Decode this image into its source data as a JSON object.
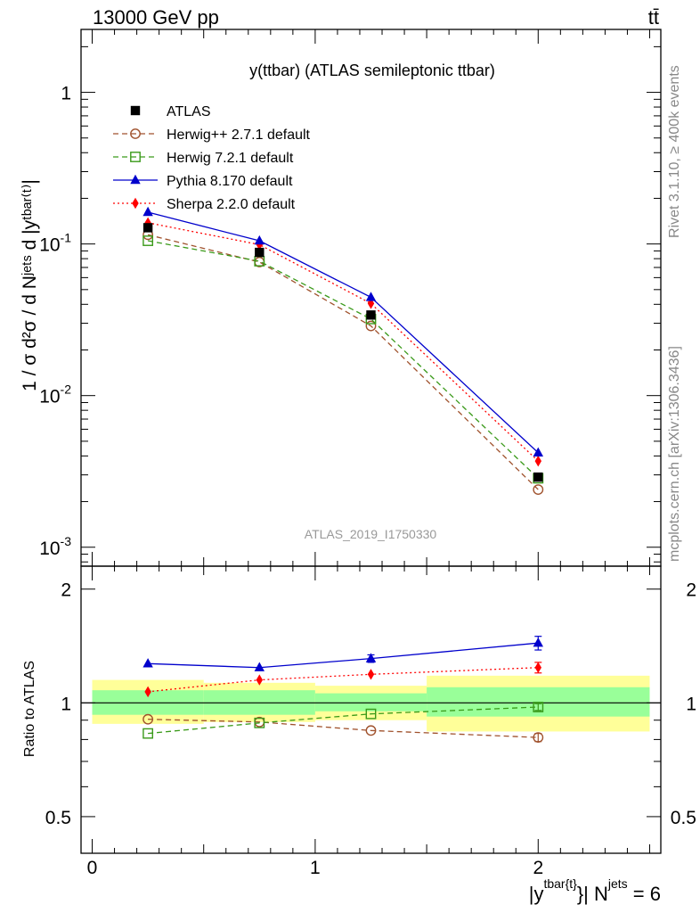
{
  "header": {
    "energy_label": "13000 GeV pp",
    "process_label": "tt̄"
  },
  "side_labels": {
    "rivet": "Rivet 3.1.10, ≥ 400k events",
    "mcplots": "mcplots.cern.ch [arXiv:1306.3436]"
  },
  "chart_data": {
    "type": "line",
    "title": "y(ttbar) (ATLAS semileptonic ttbar)",
    "analysis_label": "ATLAS_2019_I1750330",
    "ylabel_main": "1 / σ d²σ / d Nʲᵉᵗˢ d |yᵗᵇᵃʳ⁽ᵗ⁾|",
    "ylabel_ratio": "Ratio to ATLAS",
    "xlabel": "|y^{tbar{t}}| N^{jets} = 6",
    "xlabel_parts": {
      "base": "|y",
      "sup1": "tbar{t}",
      "mid": "}| N",
      "sup2": "jets",
      "tail": " = 6"
    },
    "xlim": [
      -0.05,
      2.55
    ],
    "ylim_main": [
      0.00075,
      2.6
    ],
    "yscale_main": "log",
    "ylim_ratio": [
      0.4,
      2.3
    ],
    "yscale_ratio": "log",
    "x_ticks": [
      "0",
      "1",
      "2"
    ],
    "main_y_tick_labels": [
      {
        "base": "10",
        "exp": "-3",
        "value": 0.001
      },
      {
        "base": "10",
        "exp": "-2",
        "value": 0.01
      },
      {
        "base": "10",
        "exp": "-1",
        "value": 0.1
      },
      {
        "base": "1",
        "exp": "",
        "value": 1
      }
    ],
    "ratio_y_tick_labels": [
      {
        "label": "0.5",
        "value": 0.5
      },
      {
        "label": "1",
        "value": 1
      },
      {
        "label": "2",
        "value": 2
      }
    ],
    "bins": [
      [
        0,
        0.5
      ],
      [
        0.5,
        1.0
      ],
      [
        1.0,
        1.5
      ],
      [
        1.5,
        2.5
      ]
    ],
    "x": [
      0.25,
      0.75,
      1.25,
      2.0
    ],
    "band_inner": [
      [
        0.93,
        1.08
      ],
      [
        0.93,
        1.08
      ],
      [
        0.95,
        1.06
      ],
      [
        0.92,
        1.1
      ]
    ],
    "band_outer": [
      [
        0.88,
        1.15
      ],
      [
        0.89,
        1.13
      ],
      [
        0.9,
        1.11
      ],
      [
        0.84,
        1.18
      ]
    ],
    "legend_position": "top-left",
    "series": [
      {
        "name": "ATLAS",
        "color": "#000000",
        "marker": "square-filled",
        "line": "none",
        "values": [
          0.128,
          0.088,
          0.034,
          0.0029
        ],
        "ratio": [
          1,
          1,
          1,
          1
        ],
        "ratio_err": [
          0,
          0,
          0,
          0
        ]
      },
      {
        "name": "Herwig++ 2.7.1 default",
        "color": "#a0522d",
        "marker": "circle-open",
        "line": "dashed",
        "values": [
          0.115,
          0.076,
          0.0288,
          0.0024
        ],
        "ratio": [
          0.905,
          0.89,
          0.845,
          0.81
        ],
        "ratio_err": [
          0,
          0,
          0,
          0.02
        ]
      },
      {
        "name": "Herwig 7.2.1 default",
        "color": "#3a9a1a",
        "marker": "square-open",
        "line": "dashed",
        "values": [
          0.105,
          0.077,
          0.032,
          0.00285
        ],
        "ratio": [
          0.83,
          0.885,
          0.935,
          0.975
        ],
        "ratio_err": [
          0,
          0,
          0,
          0.02
        ]
      },
      {
        "name": "Pythia 8.170 default",
        "color": "#0000cc",
        "marker": "triangle-filled",
        "line": "solid",
        "values": [
          0.162,
          0.105,
          0.0445,
          0.0042
        ],
        "ratio": [
          1.27,
          1.24,
          1.31,
          1.44
        ],
        "ratio_err": [
          0,
          0,
          0.03,
          0.06
        ]
      },
      {
        "name": "Sherpa 2.2.0 default",
        "color": "#ff0000",
        "marker": "diamond-filled",
        "line": "dotted",
        "values": [
          0.138,
          0.099,
          0.0405,
          0.0037
        ],
        "ratio": [
          1.07,
          1.15,
          1.19,
          1.24
        ],
        "ratio_err": [
          0,
          0,
          0,
          0.04
        ]
      }
    ]
  }
}
